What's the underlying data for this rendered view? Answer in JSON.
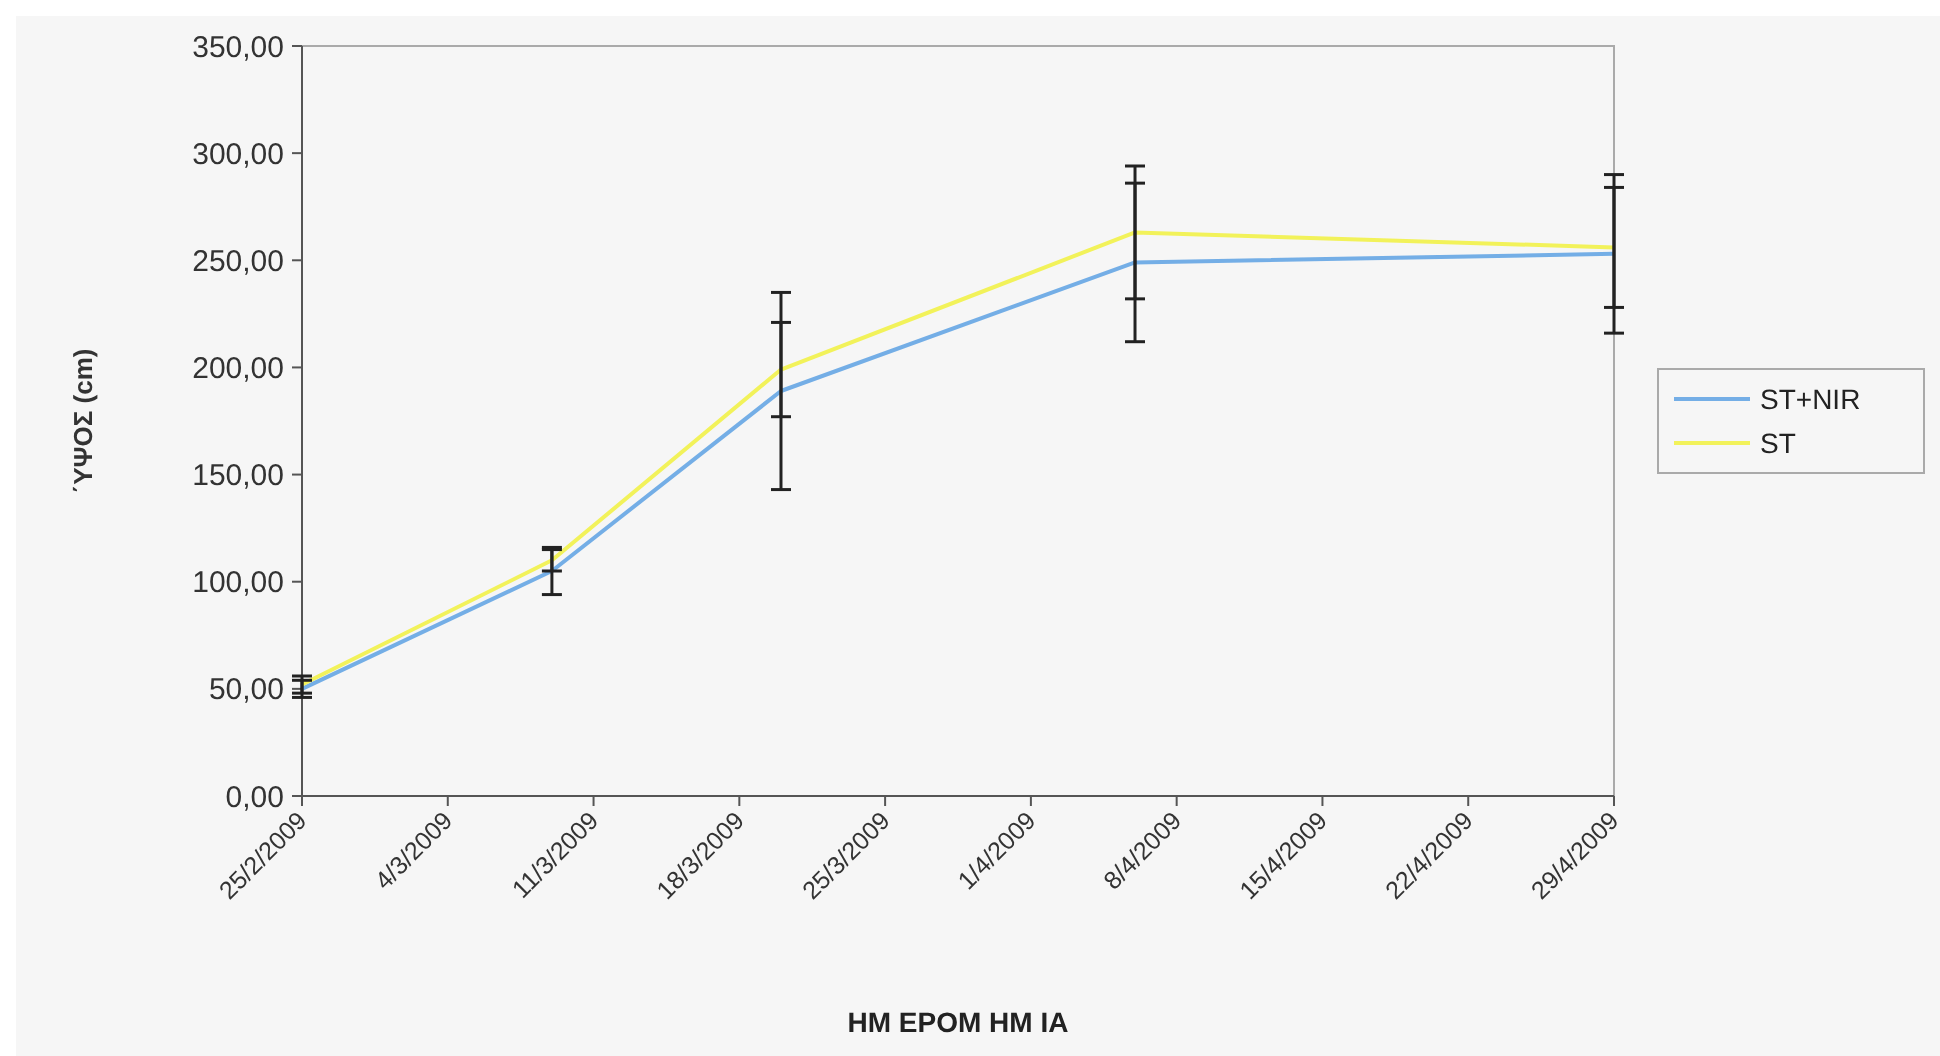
{
  "chart_data": {
    "type": "line",
    "xlabel": "HM EPOM HM IA",
    "ylabel": "΄ΥΨΟΣ (cm)",
    "x": [
      "2009-02-25",
      "2009-03-09",
      "2009-03-20",
      "2009-04-06",
      "2009-04-29"
    ],
    "series": [
      {
        "name": "ST+NIR",
        "color": "#74aee6",
        "values": [
          50,
          105,
          189,
          249,
          253
        ],
        "errors": [
          4,
          11,
          46,
          37,
          37
        ]
      },
      {
        "name": "ST",
        "color": "#f2f25a",
        "values": [
          52,
          110,
          199,
          263,
          256
        ],
        "errors": [
          4,
          5,
          22,
          31,
          28
        ]
      }
    ],
    "xlim": [
      "2009-02-25",
      "2009-04-29"
    ],
    "xticks": [
      {
        "value": "2009-02-25",
        "label": "25/2/2009"
      },
      {
        "value": "2009-03-04",
        "label": "4/3/2009"
      },
      {
        "value": "2009-03-11",
        "label": "11/3/2009"
      },
      {
        "value": "2009-03-18",
        "label": "18/3/2009"
      },
      {
        "value": "2009-03-25",
        "label": "25/3/2009"
      },
      {
        "value": "2009-04-01",
        "label": "1/4/2009"
      },
      {
        "value": "2009-04-08",
        "label": "8/4/2009"
      },
      {
        "value": "2009-04-15",
        "label": "15/4/2009"
      },
      {
        "value": "2009-04-22",
        "label": "22/4/2009"
      },
      {
        "value": "2009-04-29",
        "label": "29/4/2009"
      }
    ],
    "ylim": [
      0,
      350
    ],
    "yticks": [
      {
        "value": 0,
        "label": "0,00"
      },
      {
        "value": 50,
        "label": "50,00"
      },
      {
        "value": 100,
        "label": "100,00"
      },
      {
        "value": 150,
        "label": "150,00"
      },
      {
        "value": 200,
        "label": "200,00"
      },
      {
        "value": 250,
        "label": "250,00"
      },
      {
        "value": 300,
        "label": "300,00"
      },
      {
        "value": 350,
        "label": "350,00"
      }
    ],
    "grid": false,
    "legend": "right",
    "marker": "none",
    "line_style": "solid"
  }
}
